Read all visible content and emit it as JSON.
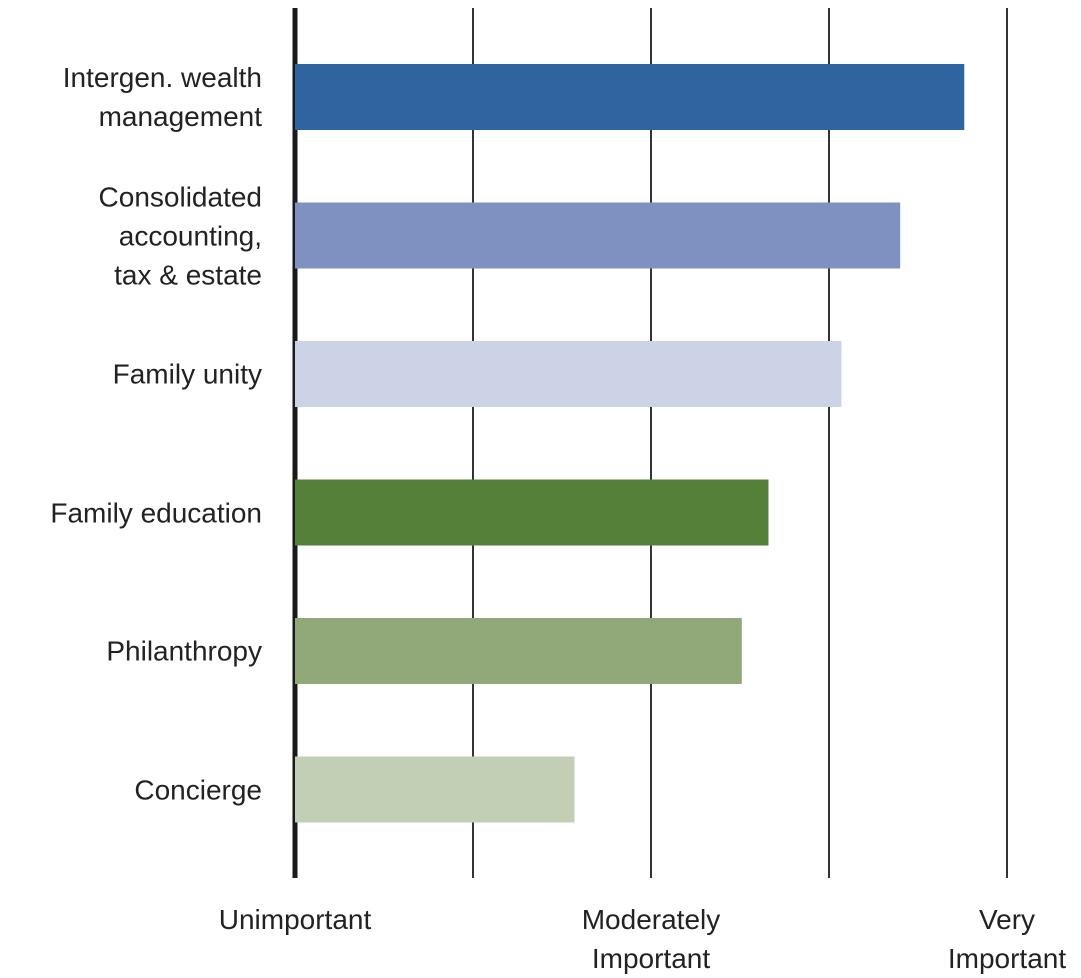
{
  "chart_data": {
    "type": "barh",
    "categories": [
      "Intergen. wealth\nmanagement",
      "Consolidated\naccounting,\ntax & estate",
      "Family unity",
      "Family education",
      "Philanthropy",
      "Concierge"
    ],
    "values": [
      4.76,
      4.4,
      4.07,
      3.66,
      3.51,
      2.57
    ],
    "colors": [
      "#2e64a0",
      "#7f91c0",
      "#cdd3e7",
      "#55803a",
      "#91a878",
      "#c3cfb4"
    ],
    "xlim": [
      1,
      5
    ],
    "xticks": [
      {
        "value": 1,
        "label": "Unimportant"
      },
      {
        "value": 2,
        "label": null
      },
      {
        "value": 3,
        "label": "Moderately\nImportant"
      },
      {
        "value": 4,
        "label": null
      },
      {
        "value": 5,
        "label": "Very\nImportant"
      }
    ],
    "grid": true
  }
}
